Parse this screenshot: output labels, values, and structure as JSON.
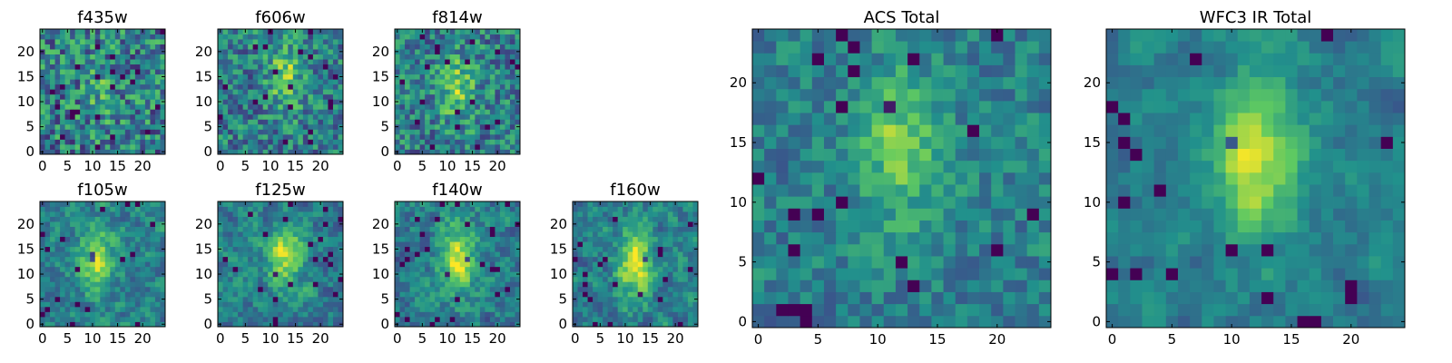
{
  "chart_data": [
    {
      "type": "heatmap",
      "title": "f435w",
      "xlim": [
        0,
        24
      ],
      "ylim": [
        0,
        24
      ],
      "xticks": [
        "0",
        "5",
        "10",
        "15",
        "20"
      ],
      "yticks": [
        "0",
        "5",
        "10",
        "15",
        "20"
      ],
      "peak": [
        12,
        12
      ],
      "signal": 0.15,
      "noise": 0.62,
      "corr": 0.0,
      "seed": 11
    },
    {
      "type": "heatmap",
      "title": "f606w",
      "xlim": [
        0,
        24
      ],
      "ylim": [
        0,
        24
      ],
      "xticks": [
        "0",
        "5",
        "10",
        "15",
        "20"
      ],
      "yticks": [
        "0",
        "5",
        "10",
        "15",
        "20"
      ],
      "peak": [
        13,
        15
      ],
      "signal": 0.35,
      "noise": 0.55,
      "corr": 0.1,
      "seed": 23
    },
    {
      "type": "heatmap",
      "title": "f814w",
      "xlim": [
        0,
        24
      ],
      "ylim": [
        0,
        24
      ],
      "xticks": [
        "0",
        "5",
        "10",
        "15",
        "20"
      ],
      "yticks": [
        "0",
        "5",
        "10",
        "15",
        "20"
      ],
      "peak": [
        12,
        13
      ],
      "signal": 0.35,
      "noise": 0.55,
      "corr": 0.1,
      "seed": 37
    },
    {
      "type": "heatmap",
      "title": "f105w",
      "xlim": [
        0,
        24
      ],
      "ylim": [
        0,
        24
      ],
      "xticks": [
        "0",
        "5",
        "10",
        "15",
        "20"
      ],
      "yticks": [
        "0",
        "5",
        "10",
        "15",
        "20"
      ],
      "peak": [
        11,
        13
      ],
      "signal": 0.45,
      "noise": 0.42,
      "corr": 0.35,
      "seed": 41
    },
    {
      "type": "heatmap",
      "title": "f125w",
      "xlim": [
        0,
        24
      ],
      "ylim": [
        0,
        24
      ],
      "xticks": [
        "0",
        "5",
        "10",
        "15",
        "20"
      ],
      "yticks": [
        "0",
        "5",
        "10",
        "15",
        "20"
      ],
      "peak": [
        13,
        14
      ],
      "signal": 0.45,
      "noise": 0.42,
      "corr": 0.35,
      "seed": 53
    },
    {
      "type": "heatmap",
      "title": "f140w",
      "xlim": [
        0,
        24
      ],
      "ylim": [
        0,
        24
      ],
      "xticks": [
        "0",
        "5",
        "10",
        "15",
        "20"
      ],
      "yticks": [
        "0",
        "5",
        "10",
        "15",
        "20"
      ],
      "peak": [
        12,
        13
      ],
      "signal": 0.5,
      "noise": 0.42,
      "corr": 0.35,
      "seed": 67
    },
    {
      "type": "heatmap",
      "title": "f160w",
      "xlim": [
        0,
        24
      ],
      "ylim": [
        0,
        24
      ],
      "xticks": [
        "0",
        "5",
        "10",
        "15",
        "20"
      ],
      "yticks": [
        "0",
        "5",
        "10",
        "15",
        "20"
      ],
      "peak": [
        12,
        12
      ],
      "signal": 0.55,
      "noise": 0.42,
      "corr": 0.35,
      "seed": 79
    },
    {
      "type": "heatmap",
      "title": "ACS Total",
      "xlim": [
        0,
        24
      ],
      "ylim": [
        0,
        24
      ],
      "xticks": [
        "0",
        "5",
        "10",
        "15",
        "20"
      ],
      "yticks": [
        "0",
        "5",
        "10",
        "15",
        "20"
      ],
      "peak": [
        12,
        15
      ],
      "signal": 0.35,
      "noise": 0.35,
      "corr": 0.15,
      "seed": 97
    },
    {
      "type": "heatmap",
      "title": "WFC3 IR Total",
      "xlim": [
        0,
        24
      ],
      "ylim": [
        0,
        24
      ],
      "xticks": [
        "0",
        "5",
        "10",
        "15",
        "20"
      ],
      "yticks": [
        "0",
        "5",
        "10",
        "15",
        "20"
      ],
      "peak": [
        12,
        14
      ],
      "signal": 0.5,
      "noise": 0.3,
      "corr": 0.5,
      "seed": 113
    }
  ],
  "colors": {
    "colormap": [
      "#440154",
      "#3b528b",
      "#21918c",
      "#5ec962",
      "#fde725"
    ],
    "axes_edge": "#000000",
    "background": "#ffffff"
  }
}
